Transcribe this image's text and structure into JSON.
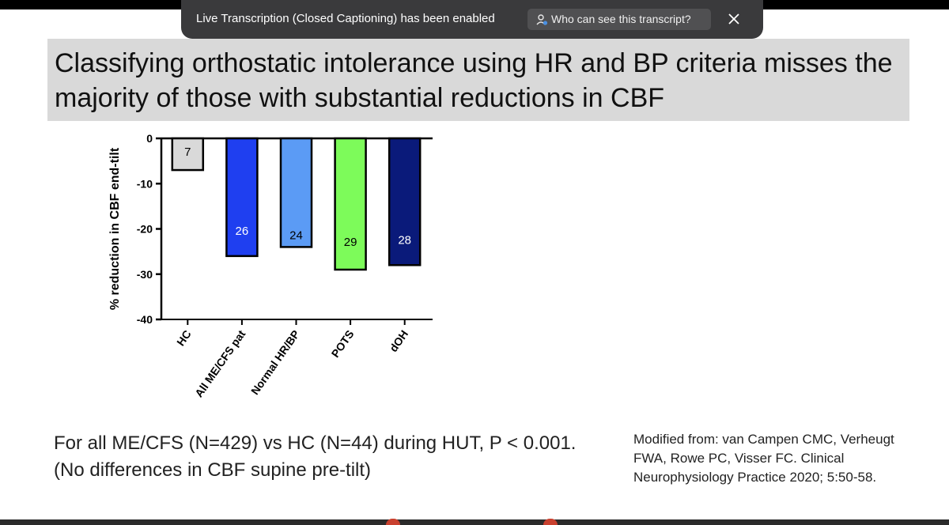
{
  "banner": {
    "caption_status": "Live Transcription (Closed Captioning) has been enabled",
    "who_button_label": "Who can see this transcript?",
    "close_icon": "close-icon",
    "person_icon": "person-icon"
  },
  "slide": {
    "title": "Classifying orthostatic intolerance using HR and BP criteria misses the majority of those with substantial reductions in CBF",
    "footnote": "For all ME/CFS (N=429) vs HC (N=44) during HUT, P < 0.001. (No differences in CBF supine pre-tilt)",
    "citation": "Modified from: van Campen CMC, Verheugt FWA, Rowe PC, Visser FC. Clinical Neurophysiology Practice 2020; 5:50-58."
  },
  "chart_data": {
    "type": "bar",
    "categories": [
      "HC",
      "All ME/CFS pat",
      "Normal HR/BP",
      "POTS",
      "dOH"
    ],
    "values": [
      -7,
      -26,
      -24,
      -29,
      -28
    ],
    "data_labels": [
      "7",
      "26",
      "24",
      "29",
      "28"
    ],
    "colors": [
      "#d9d9d9",
      "#1f3ff0",
      "#5b9bf5",
      "#7dfb5a",
      "#0a1a7a"
    ],
    "label_colors": [
      "#000000",
      "#ffffff",
      "#000000",
      "#000000",
      "#ffffff"
    ],
    "ylabel": "% reduction in CBF end-tilt",
    "xlabel": "",
    "ylim": [
      -40,
      0
    ],
    "yticks": [
      "0",
      "-10",
      "-20",
      "-30",
      "-40"
    ],
    "grid": false,
    "legend": "none"
  }
}
